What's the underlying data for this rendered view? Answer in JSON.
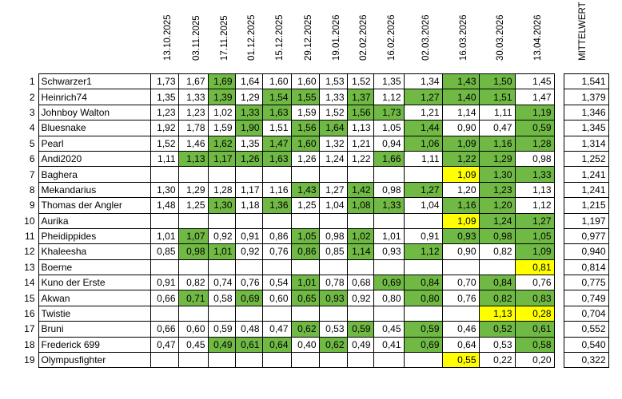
{
  "header": {
    "dates": [
      "13.10.2025",
      "03.11.2025",
      "17.11.2025",
      "01.12.2025",
      "15.12.2025",
      "29.12.2025",
      "19.01.2026",
      "02.02.2026",
      "16.02.2026",
      "02.03.2026",
      "16.03.2026",
      "30.03.2026",
      "13.04.2026"
    ],
    "mean_label": "MITTELWERT"
  },
  "colors": {
    "green": "#70b944",
    "yellow": "#ffff00"
  },
  "rows": [
    {
      "rank": "1",
      "name": "Schwarzer1",
      "values": [
        "1,73",
        "1,67",
        "1,69",
        "1,64",
        "1,60",
        "1,60",
        "1,53",
        "1,52",
        "1,35",
        "1,34",
        "1,43",
        "1,50",
        "1,45"
      ],
      "hl": [
        "",
        "",
        "g",
        "",
        "",
        "",
        "",
        "",
        "",
        "",
        "g",
        "g",
        ""
      ],
      "mean": "1,541"
    },
    {
      "rank": "2",
      "name": "Heinrich74",
      "values": [
        "1,35",
        "1,33",
        "1,39",
        "1,29",
        "1,54",
        "1,55",
        "1,33",
        "1,37",
        "1,12",
        "1,27",
        "1,40",
        "1,51",
        "1,47"
      ],
      "hl": [
        "",
        "",
        "g",
        "",
        "g",
        "g",
        "",
        "g",
        "",
        "g",
        "g",
        "g",
        ""
      ],
      "mean": "1,379"
    },
    {
      "rank": "3",
      "name": "Johnboy Walton",
      "values": [
        "1,23",
        "1,23",
        "1,02",
        "1,33",
        "1,63",
        "1,59",
        "1,52",
        "1,56",
        "1,73",
        "1,21",
        "1,14",
        "1,11",
        "1,19"
      ],
      "hl": [
        "",
        "",
        "",
        "g",
        "g",
        "",
        "",
        "g",
        "g",
        "",
        "",
        "",
        "g"
      ],
      "mean": "1,346"
    },
    {
      "rank": "4",
      "name": "Bluesnake",
      "values": [
        "1,92",
        "1,78",
        "1,59",
        "1,90",
        "1,51",
        "1,56",
        "1,64",
        "1,13",
        "1,05",
        "1,44",
        "0,90",
        "0,47",
        "0,59"
      ],
      "hl": [
        "",
        "",
        "",
        "g",
        "",
        "g",
        "g",
        "",
        "",
        "g",
        "",
        "",
        "g"
      ],
      "mean": "1,345"
    },
    {
      "rank": "5",
      "name": "Pearl",
      "values": [
        "1,52",
        "1,46",
        "1,62",
        "1,35",
        "1,47",
        "1,60",
        "1,32",
        "1,21",
        "0,94",
        "1,06",
        "1,09",
        "1,16",
        "1,28"
      ],
      "hl": [
        "",
        "",
        "g",
        "",
        "g",
        "g",
        "",
        "",
        "",
        "g",
        "g",
        "g",
        "g"
      ],
      "mean": "1,314"
    },
    {
      "rank": "6",
      "name": "Andi2020",
      "values": [
        "1,11",
        "1,13",
        "1,17",
        "1,26",
        "1,63",
        "1,26",
        "1,24",
        "1,22",
        "1,66",
        "1,11",
        "1,22",
        "1,29",
        "0,98"
      ],
      "hl": [
        "",
        "g",
        "g",
        "g",
        "g",
        "",
        "",
        "",
        "g",
        "",
        "g",
        "g",
        ""
      ],
      "mean": "1,252"
    },
    {
      "rank": "7",
      "name": "Baghera",
      "values": [
        "",
        "",
        "",
        "",
        "",
        "",
        "",
        "",
        "",
        "",
        "1,09",
        "1,30",
        "1,33"
      ],
      "hl": [
        "",
        "",
        "",
        "",
        "",
        "",
        "",
        "",
        "",
        "",
        "y",
        "g",
        "g"
      ],
      "mean": "1,241"
    },
    {
      "rank": "8",
      "name": "Mekandarius",
      "values": [
        "1,30",
        "1,29",
        "1,28",
        "1,17",
        "1,16",
        "1,43",
        "1,27",
        "1,42",
        "0,98",
        "1,27",
        "1,20",
        "1,23",
        "1,13"
      ],
      "hl": [
        "",
        "",
        "",
        "",
        "",
        "g",
        "",
        "g",
        "",
        "g",
        "",
        "g",
        ""
      ],
      "mean": "1,241"
    },
    {
      "rank": "9",
      "name": "Thomas der Angler",
      "values": [
        "1,48",
        "1,25",
        "1,30",
        "1,18",
        "1,36",
        "1,25",
        "1,04",
        "1,08",
        "1,33",
        "1,04",
        "1,16",
        "1,20",
        "1,12"
      ],
      "hl": [
        "",
        "",
        "g",
        "",
        "g",
        "",
        "",
        "g",
        "g",
        "",
        "g",
        "g",
        ""
      ],
      "mean": "1,215"
    },
    {
      "rank": "10",
      "name": "Aurika",
      "values": [
        "",
        "",
        "",
        "",
        "",
        "",
        "",
        "",
        "",
        "",
        "1,09",
        "1,24",
        "1,27"
      ],
      "hl": [
        "",
        "",
        "",
        "",
        "",
        "",
        "",
        "",
        "",
        "",
        "y",
        "g",
        "g"
      ],
      "mean": "1,197"
    },
    {
      "rank": "11",
      "name": "Pheidippides",
      "values": [
        "1,01",
        "1,07",
        "0,92",
        "0,91",
        "0,86",
        "1,05",
        "0,98",
        "1,02",
        "1,01",
        "0,91",
        "0,93",
        "0,98",
        "1,05"
      ],
      "hl": [
        "",
        "g",
        "",
        "",
        "",
        "g",
        "",
        "g",
        "",
        "",
        "g",
        "g",
        "g"
      ],
      "mean": "0,977"
    },
    {
      "rank": "12",
      "name": "Khaleesha",
      "values": [
        "0,85",
        "0,98",
        "1,01",
        "0,92",
        "0,76",
        "0,86",
        "0,85",
        "1,14",
        "0,93",
        "1,12",
        "0,90",
        "0,82",
        "1,09"
      ],
      "hl": [
        "",
        "g",
        "g",
        "",
        "",
        "g",
        "",
        "g",
        "",
        "g",
        "",
        "",
        "g"
      ],
      "mean": "0,940"
    },
    {
      "rank": "13",
      "name": "Boerne",
      "values": [
        "",
        "",
        "",
        "",
        "",
        "",
        "",
        "",
        "",
        "",
        "",
        "",
        "0,81"
      ],
      "hl": [
        "",
        "",
        "",
        "",
        "",
        "",
        "",
        "",
        "",
        "",
        "",
        "",
        "y"
      ],
      "mean": "0,814"
    },
    {
      "rank": "14",
      "name": "Kuno der Erste",
      "values": [
        "0,91",
        "0,82",
        "0,74",
        "0,76",
        "0,54",
        "1,01",
        "0,78",
        "0,68",
        "0,69",
        "0,84",
        "0,70",
        "0,84",
        "0,76"
      ],
      "hl": [
        "",
        "",
        "",
        "",
        "",
        "g",
        "",
        "",
        "g",
        "g",
        "",
        "g",
        ""
      ],
      "mean": "0,775"
    },
    {
      "rank": "15",
      "name": "Akwan",
      "values": [
        "0,66",
        "0,71",
        "0,58",
        "0,69",
        "0,60",
        "0,65",
        "0,93",
        "0,92",
        "0,80",
        "0,80",
        "0,76",
        "0,82",
        "0,83"
      ],
      "hl": [
        "",
        "g",
        "",
        "g",
        "",
        "g",
        "g",
        "",
        "",
        "g",
        "",
        "g",
        "g"
      ],
      "mean": "0,749"
    },
    {
      "rank": "16",
      "name": "Twistie",
      "values": [
        "",
        "",
        "",
        "",
        "",
        "",
        "",
        "",
        "",
        "",
        "",
        "1,13",
        "0,28"
      ],
      "hl": [
        "",
        "",
        "",
        "",
        "",
        "",
        "",
        "",
        "",
        "",
        "",
        "y",
        "y"
      ],
      "mean": "0,704"
    },
    {
      "rank": "17",
      "name": "Bruni",
      "values": [
        "0,66",
        "0,60",
        "0,59",
        "0,48",
        "0,47",
        "0,62",
        "0,53",
        "0,59",
        "0,45",
        "0,59",
        "0,46",
        "0,52",
        "0,61"
      ],
      "hl": [
        "",
        "",
        "",
        "",
        "",
        "g",
        "",
        "g",
        "",
        "g",
        "",
        "g",
        "g"
      ],
      "mean": "0,552"
    },
    {
      "rank": "18",
      "name": "Frederick 699",
      "values": [
        "0,47",
        "0,45",
        "0,49",
        "0,61",
        "0,64",
        "0,40",
        "0,62",
        "0,49",
        "0,41",
        "0,69",
        "0,64",
        "0,53",
        "0,58"
      ],
      "hl": [
        "",
        "",
        "g",
        "g",
        "g",
        "",
        "g",
        "",
        "",
        "g",
        "",
        "",
        "g"
      ],
      "mean": "0,540"
    },
    {
      "rank": "19",
      "name": "Olympusfighter",
      "values": [
        "",
        "",
        "",
        "",
        "",
        "",
        "",
        "",
        "",
        "",
        "0,55",
        "0,22",
        "0,20"
      ],
      "hl": [
        "",
        "",
        "",
        "",
        "",
        "",
        "",
        "",
        "",
        "",
        "y",
        "",
        ""
      ],
      "mean": "0,322"
    }
  ]
}
